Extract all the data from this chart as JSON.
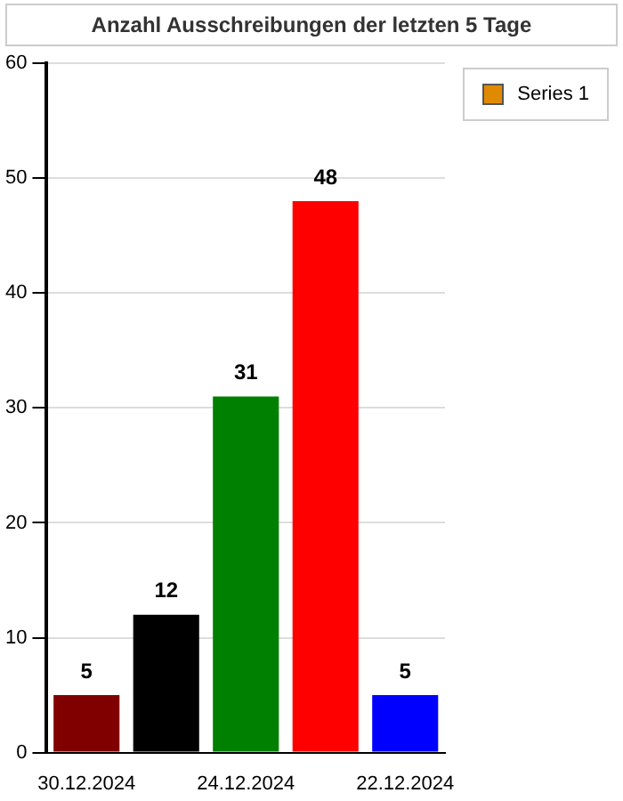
{
  "chart_data": {
    "type": "bar",
    "title": "Anzahl Ausschreibungen der letzten 5 Tage",
    "categories": [
      "30.12.2024",
      null,
      "24.12.2024",
      null,
      "22.12.2024"
    ],
    "series": [
      {
        "name": "Series 1",
        "color": "#e08a00",
        "colors": [
          "#800000",
          "#000000",
          "#008000",
          "#ff0000",
          "#0000ff"
        ],
        "values": [
          5,
          12,
          31,
          48,
          5
        ]
      }
    ],
    "ylim": [
      0,
      60
    ],
    "yticks": [
      0,
      10,
      20,
      30,
      40,
      50,
      60
    ],
    "grid": "y",
    "legend": "top right",
    "data_labels": true
  }
}
